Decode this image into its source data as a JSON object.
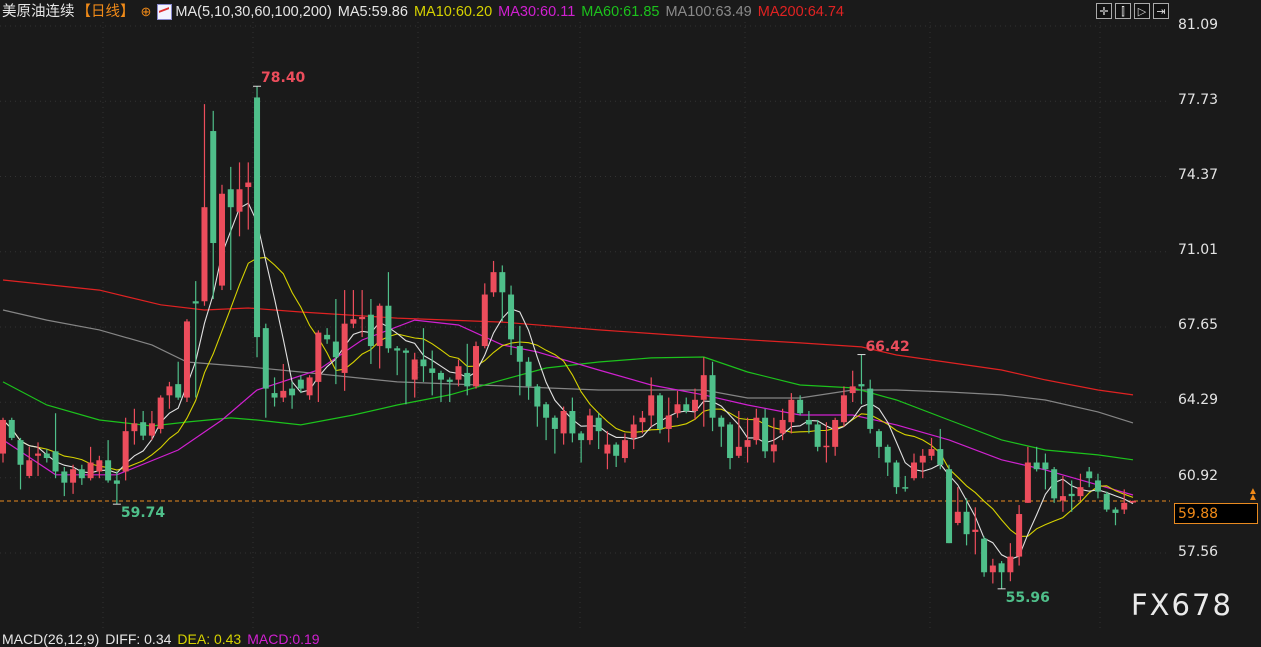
{
  "header": {
    "symbol": "美原油连续",
    "period": "【日线】",
    "crosshair_icon": "crosshair-target-icon",
    "ma_icon": "indicator-chart-icon",
    "ma_params": "MA(5,10,30,60,100,200)",
    "ma5": "MA5:59.86",
    "ma10": "MA10:60.20",
    "ma30": "MA30:60.11",
    "ma60": "MA60:61.85",
    "ma100": "MA100:63.49",
    "ma200": "MA200:64.74"
  },
  "toolbar": [
    {
      "icon": "crosshair-icon",
      "glyph": "✛"
    },
    {
      "icon": "range-select-icon",
      "glyph": "⫿"
    },
    {
      "icon": "play-icon",
      "glyph": "▷"
    },
    {
      "icon": "jump-to-end-icon",
      "glyph": "⇥"
    }
  ],
  "price_axis": [
    "81.09",
    "77.73",
    "74.37",
    "71.01",
    "67.65",
    "64.29",
    "60.92",
    "57.56"
  ],
  "current_price": "59.88",
  "watermark": "FX678",
  "macd": {
    "params": "MACD(26,12,9)",
    "diff": "DIFF: 0.34",
    "dea": "DEA: 0.43",
    "macd": "MACD:0.19"
  },
  "colors": {
    "up": "#ec4d5c",
    "down": "#4fbf8a",
    "ma5": "#e0e0e0",
    "ma10": "#d6d200",
    "ma30": "#d020d0",
    "ma60": "#1cc21c",
    "ma100": "#858585",
    "ma200": "#e02222",
    "current_line": "#e88a20"
  },
  "chart_data": {
    "type": "candlestick",
    "ylim": [
      57.56,
      81.09
    ],
    "annotations": [
      {
        "label": "78.40",
        "value": 78.4,
        "candle": 29,
        "kind": "high"
      },
      {
        "label": "59.74",
        "value": 59.74,
        "candle": 13,
        "kind": "low"
      },
      {
        "label": "66.42",
        "value": 66.42,
        "candle": 98,
        "kind": "high"
      },
      {
        "label": "55.96",
        "value": 55.96,
        "candle": 114,
        "kind": "low"
      }
    ],
    "candles_ohlc": [
      [
        62.0,
        63.6,
        61.6,
        63.5
      ],
      [
        63.5,
        63.6,
        62.6,
        62.7
      ],
      [
        62.6,
        62.7,
        60.4,
        61.5
      ],
      [
        61.0,
        62.3,
        60.9,
        61.7
      ],
      [
        61.9,
        62.5,
        61.0,
        62.0
      ],
      [
        62.0,
        62.2,
        61.6,
        61.8
      ],
      [
        62.1,
        63.8,
        60.9,
        61.2
      ],
      [
        61.2,
        61.4,
        60.1,
        60.7
      ],
      [
        60.7,
        61.5,
        60.2,
        61.3
      ],
      [
        61.3,
        61.5,
        60.6,
        60.9
      ],
      [
        60.9,
        62.3,
        60.8,
        61.6
      ],
      [
        61.2,
        61.9,
        60.9,
        61.7
      ],
      [
        61.7,
        62.6,
        60.7,
        60.8
      ],
      [
        60.8,
        61.2,
        59.74,
        60.65
      ],
      [
        61.2,
        63.6,
        60.8,
        63.0
      ],
      [
        63.0,
        64.0,
        62.4,
        63.35
      ],
      [
        63.4,
        63.9,
        62.6,
        62.8
      ],
      [
        62.8,
        63.9,
        62.6,
        63.35
      ],
      [
        63.1,
        64.6,
        62.9,
        64.5
      ],
      [
        64.6,
        65.2,
        64.0,
        65.0
      ],
      [
        65.1,
        66.1,
        64.4,
        64.5
      ],
      [
        64.5,
        68.0,
        64.3,
        67.9
      ],
      [
        68.8,
        69.7,
        64.5,
        68.7
      ],
      [
        68.8,
        77.6,
        68.6,
        73.0
      ],
      [
        76.4,
        77.3,
        68.9,
        71.4
      ],
      [
        69.5,
        74.0,
        69.3,
        73.6
      ],
      [
        73.8,
        74.8,
        69.3,
        73.0
      ],
      [
        72.8,
        75.0,
        71.7,
        73.8
      ],
      [
        73.9,
        75.0,
        72.0,
        74.1
      ],
      [
        77.9,
        78.4,
        66.3,
        67.2
      ],
      [
        67.6,
        67.8,
        63.6,
        64.9
      ],
      [
        64.7,
        65.4,
        64.1,
        64.5
      ],
      [
        64.5,
        66.0,
        64.3,
        64.8
      ],
      [
        64.9,
        65.2,
        64.0,
        64.6
      ],
      [
        65.3,
        65.5,
        64.7,
        64.9
      ],
      [
        64.6,
        65.5,
        64.4,
        65.4
      ],
      [
        65.2,
        67.5,
        64.3,
        67.4
      ],
      [
        67.3,
        67.6,
        66.9,
        67.1
      ],
      [
        67.0,
        68.9,
        65.1,
        66.3
      ],
      [
        65.6,
        69.3,
        64.8,
        67.8
      ],
      [
        67.8,
        69.3,
        67.6,
        68.0
      ],
      [
        68.0,
        69.3,
        67.2,
        68.1
      ],
      [
        68.2,
        68.9,
        66.0,
        66.8
      ],
      [
        66.8,
        68.7,
        65.8,
        68.6
      ],
      [
        68.6,
        70.1,
        66.5,
        66.7
      ],
      [
        66.7,
        66.8,
        65.5,
        66.6
      ],
      [
        66.6,
        66.7,
        64.2,
        66.5
      ],
      [
        65.3,
        66.5,
        64.5,
        66.2
      ],
      [
        66.2,
        67.6,
        65.2,
        65.9
      ],
      [
        65.8,
        66.6,
        64.6,
        65.6
      ],
      [
        65.6,
        65.7,
        64.3,
        65.3
      ],
      [
        65.3,
        65.4,
        64.3,
        65.2
      ],
      [
        65.3,
        66.2,
        65.0,
        65.9
      ],
      [
        65.6,
        66.9,
        64.6,
        65.0
      ],
      [
        65.0,
        67.0,
        64.9,
        66.8
      ],
      [
        66.8,
        69.6,
        66.7,
        69.1
      ],
      [
        69.2,
        70.6,
        69.0,
        70.1
      ],
      [
        70.1,
        70.4,
        67.9,
        69.2
      ],
      [
        69.1,
        69.5,
        66.4,
        67.1
      ],
      [
        66.8,
        67.7,
        64.6,
        66.1
      ],
      [
        66.1,
        66.3,
        64.4,
        65.0
      ],
      [
        65.0,
        65.1,
        63.2,
        64.1
      ],
      [
        64.2,
        64.3,
        62.6,
        63.6
      ],
      [
        63.6,
        63.7,
        62.0,
        63.1
      ],
      [
        62.9,
        64.1,
        62.4,
        63.9
      ],
      [
        63.9,
        64.5,
        62.5,
        62.9
      ],
      [
        62.9,
        63.0,
        61.6,
        62.6
      ],
      [
        62.6,
        64.0,
        62.4,
        63.7
      ],
      [
        63.6,
        63.8,
        62.2,
        63.0
      ],
      [
        62.0,
        63.0,
        61.3,
        62.4
      ],
      [
        62.4,
        62.5,
        61.4,
        61.9
      ],
      [
        61.8,
        62.9,
        61.6,
        62.6
      ],
      [
        62.7,
        63.7,
        62.2,
        63.3
      ],
      [
        63.4,
        63.9,
        62.9,
        63.6
      ],
      [
        63.7,
        65.4,
        63.2,
        64.6
      ],
      [
        64.6,
        64.7,
        62.9,
        63.1
      ],
      [
        63.1,
        64.5,
        62.5,
        63.7
      ],
      [
        63.8,
        64.8,
        63.6,
        64.2
      ],
      [
        64.2,
        64.5,
        63.8,
        63.9
      ],
      [
        63.9,
        64.9,
        63.5,
        64.4
      ],
      [
        64.4,
        66.3,
        63.2,
        65.5
      ],
      [
        65.5,
        66.1,
        63.0,
        63.6
      ],
      [
        63.6,
        63.7,
        62.3,
        63.2
      ],
      [
        63.3,
        63.4,
        61.3,
        61.8
      ],
      [
        61.9,
        63.9,
        61.8,
        62.3
      ],
      [
        62.3,
        63.6,
        61.6,
        62.6
      ],
      [
        62.6,
        64.0,
        62.4,
        63.6
      ],
      [
        63.6,
        64.0,
        61.8,
        62.1
      ],
      [
        62.1,
        63.6,
        61.6,
        62.4
      ],
      [
        62.9,
        64.0,
        62.6,
        63.5
      ],
      [
        63.4,
        64.7,
        62.9,
        64.4
      ],
      [
        64.4,
        64.6,
        63.7,
        63.8
      ],
      [
        63.5,
        63.9,
        62.9,
        63.3
      ],
      [
        63.3,
        63.5,
        62.1,
        62.3
      ],
      [
        62.3,
        63.4,
        61.6,
        62.35
      ],
      [
        62.3,
        63.6,
        61.9,
        63.5
      ],
      [
        63.4,
        65.0,
        63.2,
        64.6
      ],
      [
        64.7,
        65.7,
        64.3,
        65.0
      ],
      [
        65.1,
        66.42,
        64.2,
        65.0
      ],
      [
        64.9,
        65.3,
        62.9,
        63.1
      ],
      [
        63.0,
        63.1,
        61.8,
        62.3
      ],
      [
        62.3,
        62.4,
        61.0,
        61.6
      ],
      [
        61.6,
        61.7,
        60.2,
        60.5
      ],
      [
        60.5,
        61.0,
        60.3,
        60.45
      ],
      [
        60.9,
        62.0,
        60.8,
        61.6
      ],
      [
        61.6,
        62.2,
        60.9,
        61.9
      ],
      [
        61.9,
        62.7,
        61.7,
        62.2
      ],
      [
        62.2,
        63.1,
        61.3,
        61.5
      ],
      [
        61.3,
        61.5,
        58.0,
        58.0
      ],
      [
        58.9,
        60.5,
        58.8,
        59.4
      ],
      [
        59.4,
        60.0,
        57.9,
        58.4
      ],
      [
        58.5,
        59.6,
        57.5,
        58.6
      ],
      [
        58.2,
        58.3,
        56.5,
        56.7
      ],
      [
        56.7,
        57.3,
        56.2,
        57.0
      ],
      [
        57.1,
        57.2,
        55.96,
        56.7
      ],
      [
        56.7,
        58.0,
        56.3,
        57.4
      ],
      [
        57.4,
        59.7,
        57.0,
        59.3
      ],
      [
        59.8,
        62.3,
        59.8,
        61.6
      ],
      [
        61.6,
        62.3,
        61.2,
        61.3
      ],
      [
        61.6,
        62.0,
        60.4,
        61.3
      ],
      [
        61.3,
        61.4,
        59.8,
        60.0
      ],
      [
        59.9,
        61.0,
        59.4,
        60.1
      ],
      [
        60.2,
        60.8,
        59.4,
        60.1
      ],
      [
        60.1,
        61.1,
        59.9,
        60.5
      ],
      [
        61.2,
        61.4,
        60.5,
        60.9
      ],
      [
        60.8,
        61.1,
        60.0,
        60.3
      ],
      [
        60.2,
        60.3,
        59.4,
        59.5
      ],
      [
        59.5,
        59.6,
        58.8,
        59.35
      ],
      [
        59.5,
        60.4,
        59.3,
        59.8
      ],
      [
        59.86,
        59.9,
        59.8,
        59.88
      ]
    ],
    "moving_averages": {
      "MA30": [
        [
          0,
          62.61
        ],
        [
          6,
          61.05
        ],
        [
          13,
          61.05
        ],
        [
          20,
          62.16
        ],
        [
          25,
          63.5
        ],
        [
          29,
          64.84
        ],
        [
          36,
          65.73
        ],
        [
          41,
          67.07
        ],
        [
          47,
          67.96
        ],
        [
          52,
          67.74
        ],
        [
          57,
          66.85
        ],
        [
          61,
          66.54
        ],
        [
          68,
          65.73
        ],
        [
          74,
          65.06
        ],
        [
          80,
          64.62
        ],
        [
          85,
          64.17
        ],
        [
          91,
          63.72
        ],
        [
          97,
          63.72
        ],
        [
          102,
          63.28
        ],
        [
          108,
          62.61
        ],
        [
          114,
          61.72
        ],
        [
          119,
          61.27
        ],
        [
          125,
          60.6
        ],
        [
          129,
          60.15
        ]
      ],
      "MA60": [
        [
          0,
          65.2
        ],
        [
          5,
          64.17
        ],
        [
          11,
          63.5
        ],
        [
          17,
          63.23
        ],
        [
          21,
          63.41
        ],
        [
          26,
          63.59
        ],
        [
          29,
          63.5
        ],
        [
          34,
          63.28
        ],
        [
          40,
          63.72
        ],
        [
          45,
          64.17
        ],
        [
          51,
          64.62
        ],
        [
          57,
          65.29
        ],
        [
          62,
          65.82
        ],
        [
          68,
          66.09
        ],
        [
          74,
          66.27
        ],
        [
          80,
          66.31
        ],
        [
          85,
          65.64
        ],
        [
          91,
          65.06
        ],
        [
          97,
          64.93
        ],
        [
          102,
          64.39
        ],
        [
          108,
          63.5
        ],
        [
          114,
          62.61
        ],
        [
          119,
          62.16
        ],
        [
          125,
          61.94
        ],
        [
          129,
          61.72
        ]
      ],
      "MA100": [
        [
          0,
          68.41
        ],
        [
          5,
          67.96
        ],
        [
          11,
          67.52
        ],
        [
          17,
          66.85
        ],
        [
          21,
          66.09
        ],
        [
          28,
          65.87
        ],
        [
          34,
          65.64
        ],
        [
          45,
          65.2
        ],
        [
          57,
          65.02
        ],
        [
          62,
          64.93
        ],
        [
          68,
          64.84
        ],
        [
          80,
          64.84
        ],
        [
          85,
          64.48
        ],
        [
          91,
          64.48
        ],
        [
          97,
          64.84
        ],
        [
          102,
          64.84
        ],
        [
          108,
          64.75
        ],
        [
          114,
          64.62
        ],
        [
          119,
          64.39
        ],
        [
          125,
          63.86
        ],
        [
          129,
          63.37
        ]
      ],
      "MA200": [
        [
          0,
          69.75
        ],
        [
          11,
          69.3
        ],
        [
          18,
          68.64
        ],
        [
          23,
          68.41
        ],
        [
          28,
          68.5
        ],
        [
          34,
          68.32
        ],
        [
          45,
          68.05
        ],
        [
          57,
          67.87
        ],
        [
          68,
          67.52
        ],
        [
          80,
          67.2
        ],
        [
          91,
          66.94
        ],
        [
          98,
          66.76
        ],
        [
          102,
          66.4
        ],
        [
          114,
          65.73
        ],
        [
          119,
          65.29
        ],
        [
          125,
          64.84
        ],
        [
          129,
          64.62
        ]
      ]
    }
  }
}
